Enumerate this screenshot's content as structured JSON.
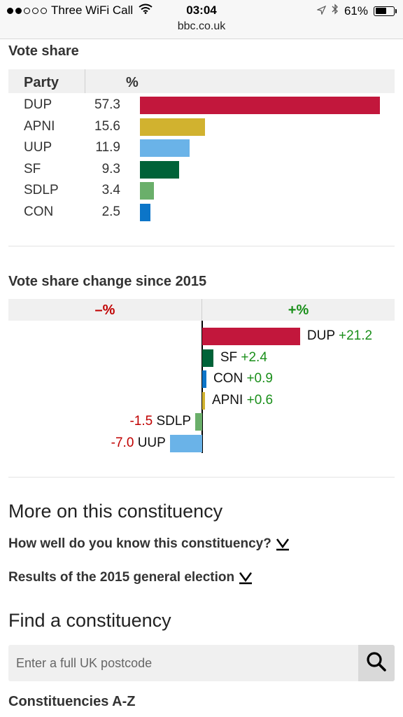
{
  "status_bar": {
    "carrier": "Three WiFi Call",
    "time": "03:04",
    "url": "bbc.co.uk",
    "battery": "61%",
    "battery_level": 0.61,
    "signal_bars_filled": 2,
    "signal_bars_total": 5
  },
  "vote_share": {
    "heading": "Vote share",
    "col_party": "Party",
    "col_pct": "%",
    "rows": [
      {
        "party": "DUP",
        "pct": "57.3",
        "color": "#c2173c"
      },
      {
        "party": "APNI",
        "pct": "15.6",
        "color": "#d1b22f"
      },
      {
        "party": "UUP",
        "pct": "11.9",
        "color": "#6ab3e8"
      },
      {
        "party": "SF",
        "pct": "9.3",
        "color": "#006238"
      },
      {
        "party": "SDLP",
        "pct": "3.4",
        "color": "#6aaf6a"
      },
      {
        "party": "CON",
        "pct": "2.5",
        "color": "#0c75c8"
      }
    ]
  },
  "vote_change": {
    "heading": "Vote share change since 2015",
    "neg_header": "–%",
    "pos_header": "+%",
    "rows": [
      {
        "party": "DUP",
        "change": "+21.2",
        "value": 21.2,
        "color": "#c2173c"
      },
      {
        "party": "SF",
        "change": "+2.4",
        "value": 2.4,
        "color": "#006238"
      },
      {
        "party": "CON",
        "change": "+0.9",
        "value": 0.9,
        "color": "#0c75c8"
      },
      {
        "party": "APNI",
        "change": "+0.6",
        "value": 0.6,
        "color": "#d1b22f"
      },
      {
        "party": "SDLP",
        "change": "-1.5",
        "value": -1.5,
        "color": "#6aaf6a"
      },
      {
        "party": "UUP",
        "change": "-7.0",
        "value": -7.0,
        "color": "#6ab3e8"
      }
    ]
  },
  "more": {
    "heading": "More on this constituency",
    "link1": "How well do you know this constituency?",
    "link2": "Results of the 2015 general election"
  },
  "find": {
    "heading": "Find a constituency",
    "placeholder": "Enter a full UK postcode",
    "az_link": "Constituencies A-Z"
  },
  "icons": {
    "wifi": "wifi-icon",
    "location": "location-arrow-icon",
    "bluetooth": "bluetooth-icon",
    "battery": "battery-icon",
    "search": "search-icon",
    "expand": "expand-chevron-icon"
  }
}
